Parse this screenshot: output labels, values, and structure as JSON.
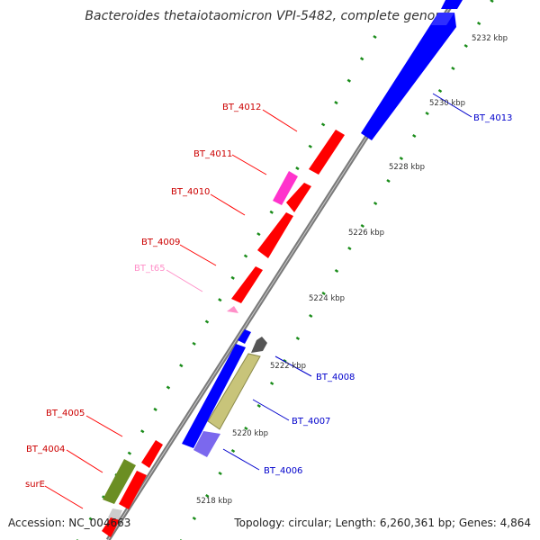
{
  "title": "Bacteroides thetaiotaomicron VPI-5482, complete genome",
  "footer": {
    "accession": "Accession: NC_004663",
    "topology": "Topology: circular; Length: 6,260,361 bp; Genes: 4,864"
  },
  "colors": {
    "red": "#ff0000",
    "blue": "#0000ff",
    "magenta": "#ff33cc",
    "pink": "#ff8fc8",
    "olive": "#c8c47a",
    "olive_dark": "#6b8e23",
    "slate": "#7b68ee",
    "grey": "#707070",
    "dot_green": "#1a8c1a",
    "label_blue": "#0000cc",
    "label_red": "#cc0000"
  },
  "scale": {
    "ticks": [
      "5218 kbp",
      "5220 kbp",
      "5222 kbp",
      "5224 kbp",
      "5226 kbp",
      "5228 kbp",
      "5230 kbp",
      "5232 kbp"
    ]
  },
  "genes": {
    "BT_4013": "BT_4013",
    "BT_4012": "BT_4012",
    "BT_4011": "BT_4011",
    "BT_4010": "BT_4010",
    "BT_4009": "BT_4009",
    "BT_t65": "BT_t65",
    "BT_4008": "BT_4008",
    "BT_4007": "BT_4007",
    "BT_4006": "BT_4006",
    "BT_4005": "BT_4005",
    "BT_4004": "BT_4004",
    "surE": "surE"
  }
}
